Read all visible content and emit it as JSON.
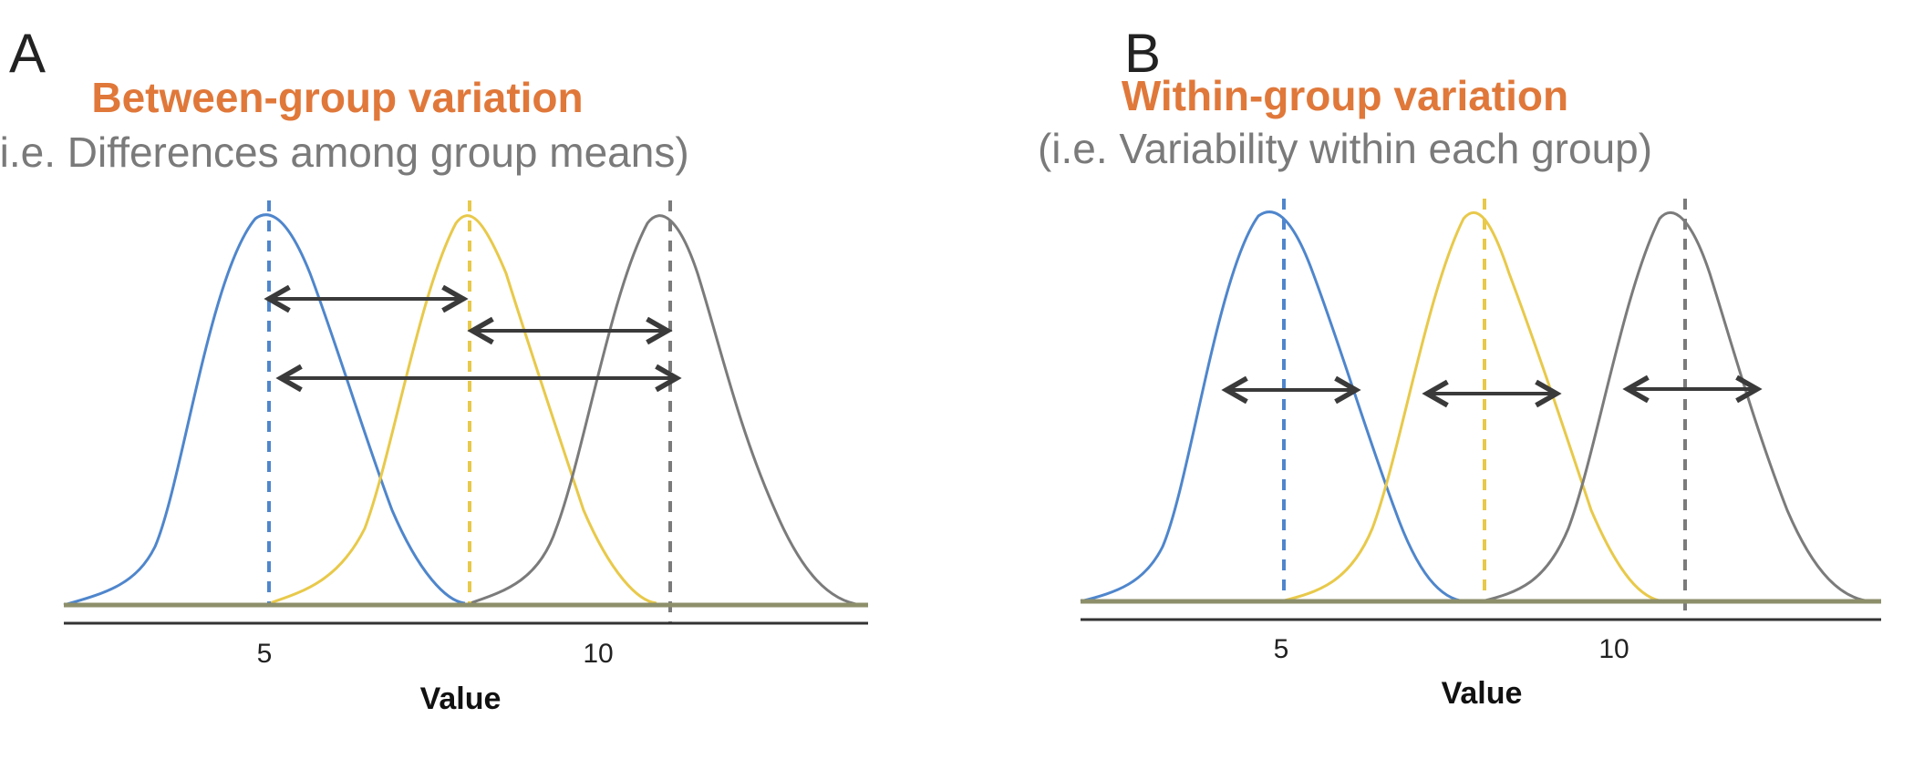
{
  "panels": [
    {
      "letter": "A",
      "title": "Between-group variation",
      "subtitle": "(i.e. Differences among group means)",
      "x_tick_labels": [
        "5",
        "10"
      ],
      "x_axis_label": "Value"
    },
    {
      "letter": "B",
      "title": "Within-group variation",
      "subtitle": "(i.e. Variability within each group)",
      "x_tick_labels": [
        "5",
        "10"
      ],
      "x_axis_label": "Value"
    }
  ],
  "colors": {
    "title": "#e0783a",
    "subtitle": "#7a7a7a",
    "group_blue": "#4f86cc",
    "group_yellow": "#e8c94a",
    "group_gray": "#7b7b7b",
    "arrow": "#3a3a3a",
    "baseline": "#8d8f6b"
  },
  "chart_data": [
    {
      "type": "area",
      "title": "Between-group variation",
      "xlabel": "Value",
      "xlim": [
        2,
        14
      ],
      "x_ticks": [
        5,
        10
      ],
      "series": [
        {
          "mean": 5,
          "color": "blue"
        },
        {
          "mean": 8,
          "color": "yellow"
        },
        {
          "mean": 11,
          "color": "gray"
        }
      ],
      "annotations": [
        "arrow between means 5 and 8",
        "arrow between means 8 and 11",
        "arrow between means 5 and 11"
      ]
    },
    {
      "type": "area",
      "title": "Within-group variation",
      "xlabel": "Value",
      "xlim": [
        2,
        14
      ],
      "x_ticks": [
        5,
        10
      ],
      "series": [
        {
          "mean": 5,
          "color": "blue"
        },
        {
          "mean": 8,
          "color": "yellow"
        },
        {
          "mean": 11,
          "color": "gray"
        }
      ],
      "annotations": [
        "arrow showing spread within each group"
      ]
    }
  ]
}
